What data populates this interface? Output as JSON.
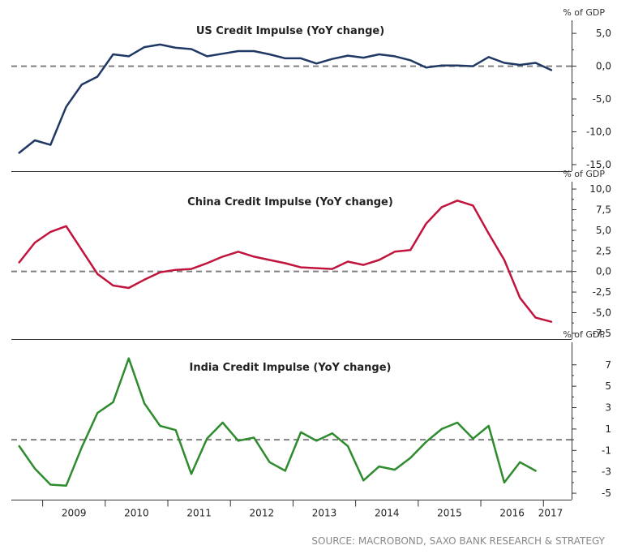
{
  "source": "SOURCE: MACROBOND, SAXO BANK RESEARCH & STRATEGY",
  "colors": {
    "us": "#1f3864",
    "china": "#c0143c",
    "india": "#2e8b2e",
    "zero_line": "#808080"
  },
  "chart_data": [
    {
      "type": "line",
      "title": "US Credit Impulse (YoY change)",
      "ylabel": "% of GDP",
      "ylim": [
        -16.0,
        6.5
      ],
      "yticks": [
        5.0,
        0.0,
        -5.0,
        -10.0,
        -15.0
      ],
      "ytick_labels": [
        "5,0",
        "0,0",
        "-5,0",
        "-10,0",
        "-15,0"
      ],
      "reference_line": 0,
      "series": [
        {
          "values": [
            {
              "x": 2008.625,
              "y": -13.2
            },
            {
              "x": 2008.875,
              "y": -11.3
            },
            {
              "x": 2009.125,
              "y": -12.0
            },
            {
              "x": 2009.375,
              "y": -6.2
            },
            {
              "x": 2009.625,
              "y": -2.8
            },
            {
              "x": 2009.875,
              "y": -1.6
            },
            {
              "x": 2010.125,
              "y": 1.8
            },
            {
              "x": 2010.375,
              "y": 1.5
            },
            {
              "x": 2010.625,
              "y": 2.9
            },
            {
              "x": 2010.875,
              "y": 3.3
            },
            {
              "x": 2011.125,
              "y": 2.8
            },
            {
              "x": 2011.375,
              "y": 2.6
            },
            {
              "x": 2011.625,
              "y": 1.5
            },
            {
              "x": 2011.875,
              "y": 1.9
            },
            {
              "x": 2012.125,
              "y": 2.3
            },
            {
              "x": 2012.375,
              "y": 2.3
            },
            {
              "x": 2012.625,
              "y": 1.8
            },
            {
              "x": 2012.875,
              "y": 1.2
            },
            {
              "x": 2013.125,
              "y": 1.2
            },
            {
              "x": 2013.375,
              "y": 0.4
            },
            {
              "x": 2013.625,
              "y": 1.1
            },
            {
              "x": 2013.875,
              "y": 1.6
            },
            {
              "x": 2014.125,
              "y": 1.3
            },
            {
              "x": 2014.375,
              "y": 1.8
            },
            {
              "x": 2014.625,
              "y": 1.5
            },
            {
              "x": 2014.875,
              "y": 0.9
            },
            {
              "x": 2015.125,
              "y": -0.2
            },
            {
              "x": 2015.375,
              "y": 0.1
            },
            {
              "x": 2015.625,
              "y": 0.1
            },
            {
              "x": 2015.875,
              "y": 0.0
            },
            {
              "x": 2016.125,
              "y": 1.4
            },
            {
              "x": 2016.375,
              "y": 0.5
            },
            {
              "x": 2016.625,
              "y": 0.2
            },
            {
              "x": 2016.875,
              "y": 0.5
            },
            {
              "x": 2017.125,
              "y": -0.6
            }
          ]
        }
      ]
    },
    {
      "type": "line",
      "title": "China Credit Impulse (YoY change)",
      "ylabel": "% of GDP",
      "ylim": [
        -8.2,
        10.5
      ],
      "yticks": [
        10.0,
        7.5,
        5.0,
        2.5,
        0.0,
        -2.5,
        -5.0,
        -7.5
      ],
      "ytick_labels": [
        "10,0",
        "7,5",
        "5,0",
        "2,5",
        "0,0",
        "-2,5",
        "-5,0",
        "-7,5"
      ],
      "reference_line": 0,
      "series": [
        {
          "values": [
            {
              "x": 2008.625,
              "y": 1.1
            },
            {
              "x": 2008.875,
              "y": 3.5
            },
            {
              "x": 2009.125,
              "y": 4.8
            },
            {
              "x": 2009.375,
              "y": 5.5
            },
            {
              "x": 2009.625,
              "y": 2.6
            },
            {
              "x": 2009.875,
              "y": -0.3
            },
            {
              "x": 2010.125,
              "y": -1.7
            },
            {
              "x": 2010.375,
              "y": -2.0
            },
            {
              "x": 2010.625,
              "y": -1.0
            },
            {
              "x": 2010.875,
              "y": -0.1
            },
            {
              "x": 2011.125,
              "y": 0.2
            },
            {
              "x": 2011.375,
              "y": 0.3
            },
            {
              "x": 2011.625,
              "y": 1.0
            },
            {
              "x": 2011.875,
              "y": 1.8
            },
            {
              "x": 2012.125,
              "y": 2.4
            },
            {
              "x": 2012.375,
              "y": 1.8
            },
            {
              "x": 2012.625,
              "y": 1.4
            },
            {
              "x": 2012.875,
              "y": 1.0
            },
            {
              "x": 2013.125,
              "y": 0.5
            },
            {
              "x": 2013.375,
              "y": 0.4
            },
            {
              "x": 2013.625,
              "y": 0.3
            },
            {
              "x": 2013.875,
              "y": 1.2
            },
            {
              "x": 2014.125,
              "y": 0.8
            },
            {
              "x": 2014.375,
              "y": 1.4
            },
            {
              "x": 2014.625,
              "y": 2.4
            },
            {
              "x": 2014.875,
              "y": 2.6
            },
            {
              "x": 2015.125,
              "y": 5.8
            },
            {
              "x": 2015.375,
              "y": 7.8
            },
            {
              "x": 2015.625,
              "y": 8.6
            },
            {
              "x": 2015.875,
              "y": 8.0
            },
            {
              "x": 2016.125,
              "y": 4.6
            },
            {
              "x": 2016.375,
              "y": 1.4
            },
            {
              "x": 2016.625,
              "y": -3.2
            },
            {
              "x": 2016.875,
              "y": -5.6
            },
            {
              "x": 2017.125,
              "y": -6.1
            }
          ]
        }
      ]
    },
    {
      "type": "line",
      "title": "India Credit Impulse (YoY change)",
      "ylabel": "% of GDP",
      "ylim": [
        -5.6,
        8.8
      ],
      "yticks": [
        7,
        5,
        3,
        1,
        -1,
        -3,
        -5
      ],
      "ytick_labels": [
        "7",
        "5",
        "3",
        "1",
        "-1",
        "-3",
        "-5"
      ],
      "reference_line": 0,
      "series": [
        {
          "values": [
            {
              "x": 2008.625,
              "y": -0.6
            },
            {
              "x": 2008.875,
              "y": -2.7
            },
            {
              "x": 2009.125,
              "y": -4.2
            },
            {
              "x": 2009.375,
              "y": -4.3
            },
            {
              "x": 2009.625,
              "y": -0.7
            },
            {
              "x": 2009.875,
              "y": 2.5
            },
            {
              "x": 2010.125,
              "y": 3.5
            },
            {
              "x": 2010.375,
              "y": 7.6
            },
            {
              "x": 2010.625,
              "y": 3.4
            },
            {
              "x": 2010.875,
              "y": 1.3
            },
            {
              "x": 2011.125,
              "y": 0.9
            },
            {
              "x": 2011.375,
              "y": -3.2
            },
            {
              "x": 2011.625,
              "y": 0.1
            },
            {
              "x": 2011.875,
              "y": 1.6
            },
            {
              "x": 2012.125,
              "y": -0.1
            },
            {
              "x": 2012.375,
              "y": 0.2
            },
            {
              "x": 2012.625,
              "y": -2.1
            },
            {
              "x": 2012.875,
              "y": -2.9
            },
            {
              "x": 2013.125,
              "y": 0.7
            },
            {
              "x": 2013.375,
              "y": -0.1
            },
            {
              "x": 2013.625,
              "y": 0.6
            },
            {
              "x": 2013.875,
              "y": -0.6
            },
            {
              "x": 2014.125,
              "y": -3.8
            },
            {
              "x": 2014.375,
              "y": -2.5
            },
            {
              "x": 2014.625,
              "y": -2.8
            },
            {
              "x": 2014.875,
              "y": -1.7
            },
            {
              "x": 2015.125,
              "y": -0.2
            },
            {
              "x": 2015.375,
              "y": 1.0
            },
            {
              "x": 2015.625,
              "y": 1.6
            },
            {
              "x": 2015.875,
              "y": 0.1
            },
            {
              "x": 2016.125,
              "y": 1.3
            },
            {
              "x": 2016.375,
              "y": -4.0
            },
            {
              "x": 2016.625,
              "y": -2.1
            },
            {
              "x": 2016.875,
              "y": -2.9
            }
          ]
        }
      ]
    }
  ],
  "x_axis": {
    "xlim": [
      2008.5,
      2017.45
    ],
    "tick_labels": [
      "2009",
      "2010",
      "2011",
      "2012",
      "2013",
      "2014",
      "2015",
      "2016",
      "2017"
    ]
  }
}
